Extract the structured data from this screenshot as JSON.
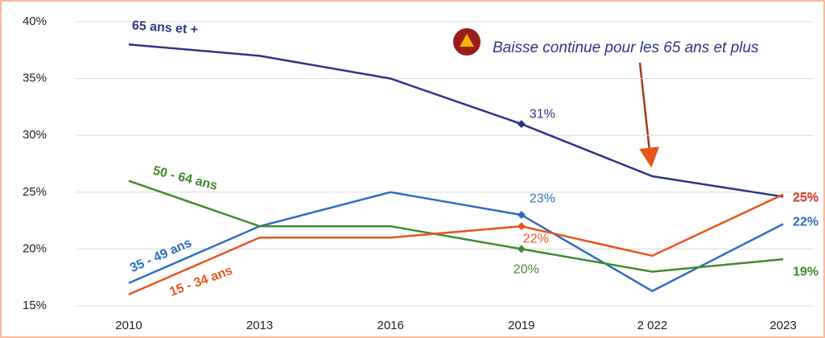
{
  "chart_data": {
    "type": "line",
    "categories": [
      "2010",
      "2013",
      "2016",
      "2019",
      "2 022",
      "2023"
    ],
    "ylim": [
      15,
      40
    ],
    "yticks": [
      {
        "value": 15,
        "label": "15%"
      },
      {
        "value": 20,
        "label": "20%"
      },
      {
        "value": 25,
        "label": "25%"
      },
      {
        "value": 30,
        "label": "30%"
      },
      {
        "value": 35,
        "label": "35%"
      },
      {
        "value": 40,
        "label": "40%"
      }
    ],
    "grid": true,
    "annotation": "Baisse continue pour les 65 ans et plus",
    "series": [
      {
        "name": "65 ans et +",
        "color": "#2e3585",
        "values": [
          38,
          37,
          35,
          31,
          26.4,
          24.6
        ],
        "value_labels": [
          null,
          null,
          null,
          "31%",
          null,
          "25%"
        ]
      },
      {
        "name": "35 - 49 ans",
        "color": "#2f6cc0",
        "values": [
          17,
          22,
          25,
          23,
          16.3,
          22.2
        ],
        "value_labels": [
          null,
          null,
          null,
          "23%",
          null,
          "22%"
        ]
      },
      {
        "name": "50 - 64 ans",
        "color": "#3f8a2e",
        "values": [
          26,
          22,
          22,
          20,
          18,
          19.1
        ],
        "value_labels": [
          null,
          null,
          null,
          "20%",
          null,
          "19%"
        ]
      },
      {
        "name": "15 - 34 ans",
        "color": "#e8541e",
        "values": [
          16,
          21,
          21,
          22,
          19.4,
          24.8
        ],
        "value_labels": [
          null,
          null,
          null,
          "22%",
          null,
          "25%"
        ]
      }
    ]
  }
}
